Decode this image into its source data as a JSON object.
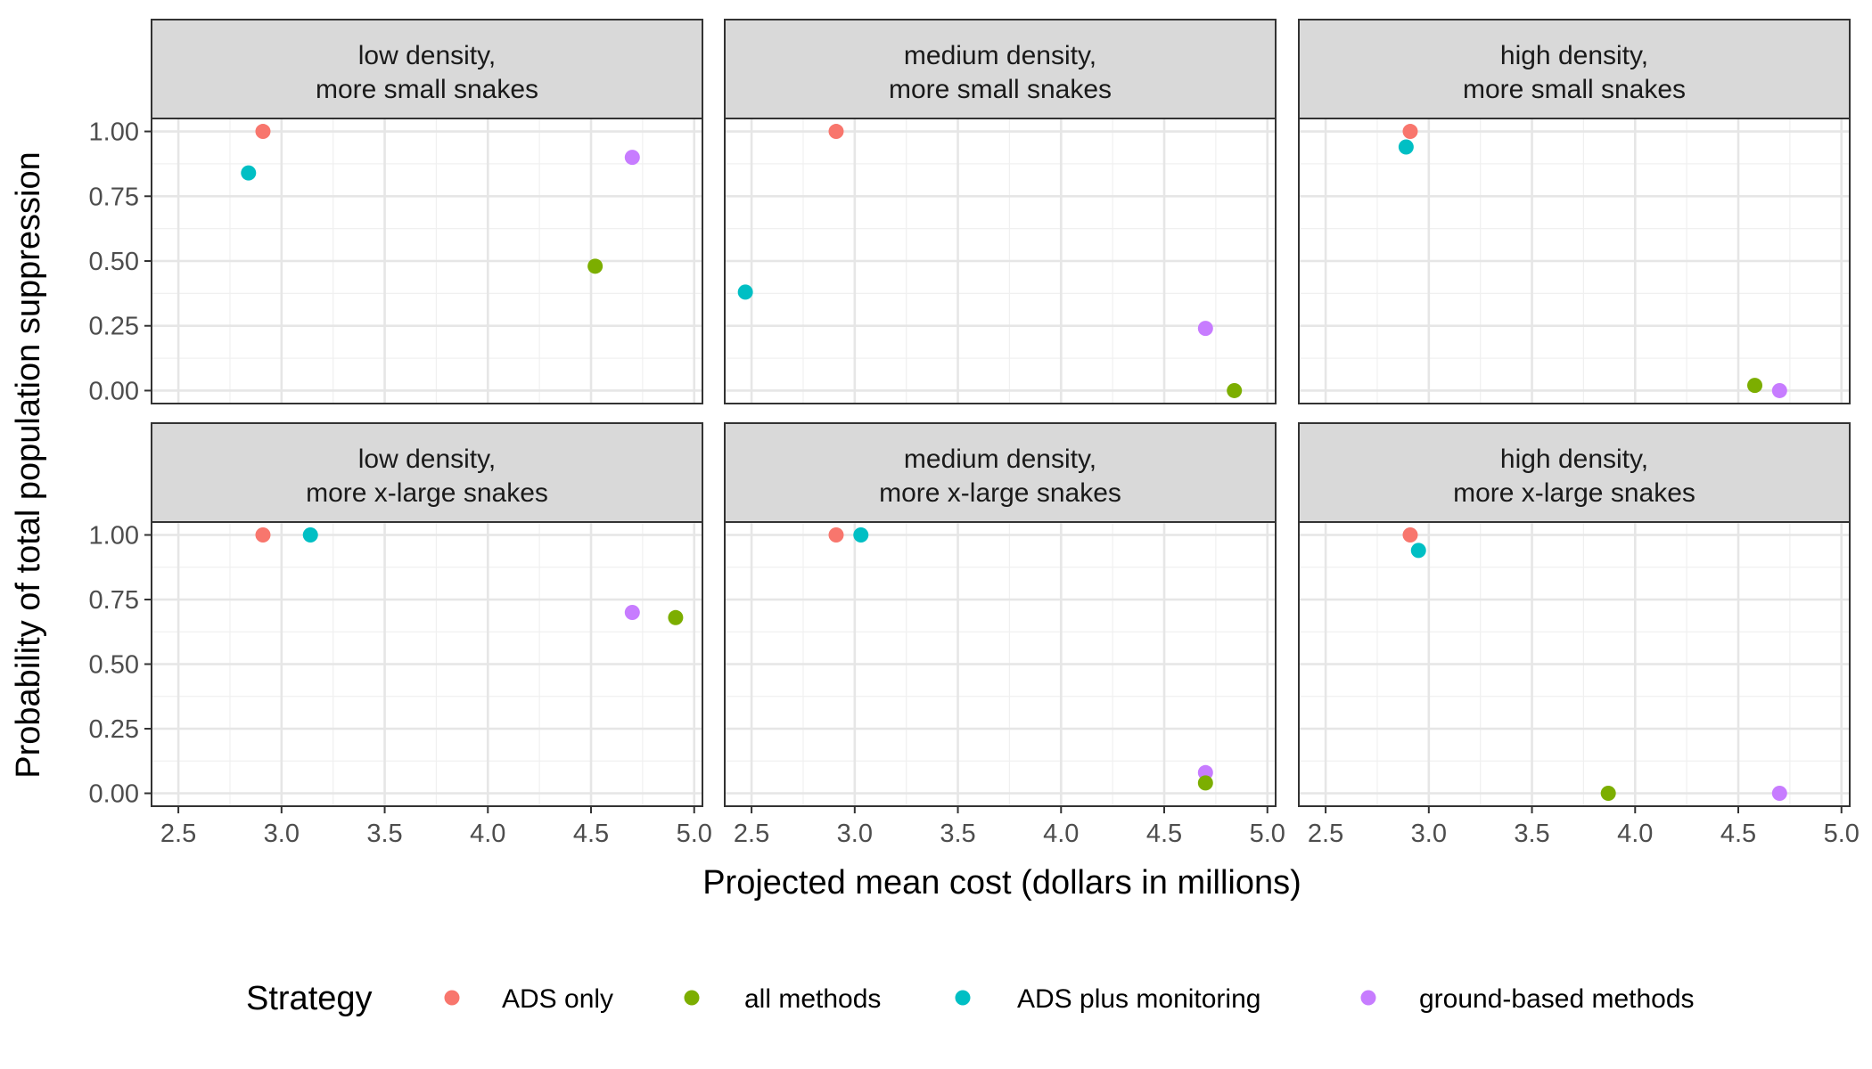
{
  "chart_data": {
    "type": "scatter",
    "xlabel": "Projected mean cost (dollars in millions)",
    "ylabel": "Probability of total population suppression",
    "xlim": [
      2.37,
      5.04
    ],
    "ylim": [
      -0.05,
      1.05
    ],
    "xticks": [
      2.5,
      3.0,
      3.5,
      4.0,
      4.5,
      5.0
    ],
    "xtick_labels": [
      "2.5",
      "3.0",
      "3.5",
      "4.0",
      "4.5",
      "5.0"
    ],
    "yticks": [
      0.0,
      0.25,
      0.5,
      0.75,
      1.0
    ],
    "ytick_labels": [
      "0.00",
      "0.25",
      "0.50",
      "0.75",
      "1.00"
    ],
    "grid": true,
    "legend": {
      "title": "Strategy",
      "position": "bottom",
      "entries": [
        {
          "key": "ads",
          "label": "ADS only",
          "color": "#F8766D"
        },
        {
          "key": "all",
          "label": "all methods",
          "color": "#7CAE00"
        },
        {
          "key": "adsmon",
          "label": "ADS plus monitoring",
          "color": "#00BFC4"
        },
        {
          "key": "ground",
          "label": "ground-based methods",
          "color": "#C77CFF"
        }
      ]
    },
    "panels": [
      {
        "strip": [
          "low density,",
          "more small snakes"
        ],
        "points": [
          {
            "series": "ads",
            "x": 2.91,
            "y": 1.0
          },
          {
            "series": "adsmon",
            "x": 2.84,
            "y": 0.84
          },
          {
            "series": "ground",
            "x": 4.7,
            "y": 0.9
          },
          {
            "series": "all",
            "x": 4.52,
            "y": 0.48
          }
        ]
      },
      {
        "strip": [
          "medium density,",
          "more small snakes"
        ],
        "points": [
          {
            "series": "ads",
            "x": 2.91,
            "y": 1.0
          },
          {
            "series": "adsmon",
            "x": 2.47,
            "y": 0.38
          },
          {
            "series": "ground",
            "x": 4.7,
            "y": 0.24
          },
          {
            "series": "all",
            "x": 4.84,
            "y": 0.0
          }
        ]
      },
      {
        "strip": [
          "high density,",
          "more small snakes"
        ],
        "points": [
          {
            "series": "ads",
            "x": 2.91,
            "y": 1.0
          },
          {
            "series": "adsmon",
            "x": 2.89,
            "y": 0.94
          },
          {
            "series": "all",
            "x": 4.58,
            "y": 0.02
          },
          {
            "series": "ground",
            "x": 4.7,
            "y": 0.0
          }
        ]
      },
      {
        "strip": [
          "low density,",
          "more x-large snakes"
        ],
        "points": [
          {
            "series": "ads",
            "x": 2.91,
            "y": 1.0
          },
          {
            "series": "adsmon",
            "x": 3.14,
            "y": 1.0
          },
          {
            "series": "ground",
            "x": 4.7,
            "y": 0.7
          },
          {
            "series": "all",
            "x": 4.91,
            "y": 0.68
          }
        ]
      },
      {
        "strip": [
          "medium density,",
          "more x-large snakes"
        ],
        "points": [
          {
            "series": "ads",
            "x": 2.91,
            "y": 1.0
          },
          {
            "series": "adsmon",
            "x": 3.03,
            "y": 1.0
          },
          {
            "series": "ground",
            "x": 4.7,
            "y": 0.08
          },
          {
            "series": "all",
            "x": 4.7,
            "y": 0.04
          }
        ]
      },
      {
        "strip": [
          "high density,",
          "more x-large snakes"
        ],
        "points": [
          {
            "series": "ads",
            "x": 2.91,
            "y": 1.0
          },
          {
            "series": "adsmon",
            "x": 2.95,
            "y": 0.94
          },
          {
            "series": "all",
            "x": 3.87,
            "y": 0.0
          },
          {
            "series": "ground",
            "x": 4.7,
            "y": 0.0
          }
        ]
      }
    ]
  }
}
